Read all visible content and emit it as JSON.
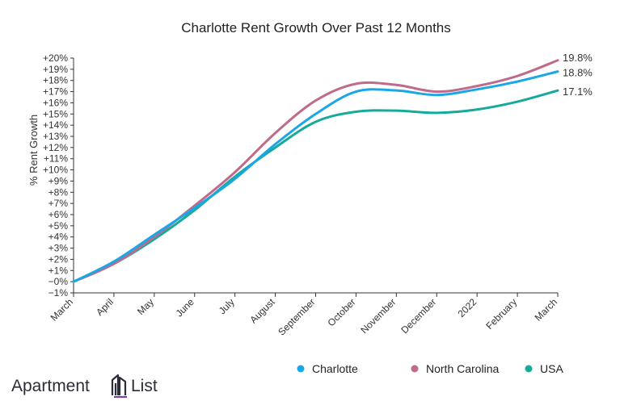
{
  "chart_data": {
    "type": "line",
    "title": "Charlotte Rent Growth Over Past 12 Months",
    "ylabel": "% Rent Growth",
    "xlabel": "",
    "categories": [
      "March",
      "April",
      "May",
      "June",
      "July",
      "August",
      "September",
      "October",
      "November",
      "December",
      "2022",
      "February",
      "March"
    ],
    "ylim": [
      -1,
      20
    ],
    "yticks": [
      -1,
      0,
      1,
      2,
      3,
      4,
      5,
      6,
      7,
      8,
      9,
      10,
      11,
      12,
      13,
      14,
      15,
      16,
      17,
      18,
      19,
      20
    ],
    "ytick_labels": [
      "−1%",
      "−0%",
      "+1%",
      "+2%",
      "+3%",
      "+4%",
      "+5%",
      "+6%",
      "+7%",
      "+8%",
      "+9%",
      "+10%",
      "+11%",
      "+12%",
      "+13%",
      "+14%",
      "+15%",
      "+16%",
      "+17%",
      "+18%",
      "+19%",
      "+20%"
    ],
    "series": [
      {
        "name": "Charlotte",
        "color": "#1aa7e6",
        "values": [
          0,
          1.8,
          4.2,
          6.6,
          9.2,
          12.3,
          15.0,
          17.0,
          17.1,
          16.7,
          17.2,
          17.9,
          18.8
        ],
        "end_label": "18.8%"
      },
      {
        "name": "North Carolina",
        "color": "#c06a8c",
        "values": [
          0,
          1.6,
          4.0,
          6.8,
          9.8,
          13.3,
          16.2,
          17.7,
          17.6,
          17.0,
          17.5,
          18.4,
          19.8
        ],
        "end_label": "19.8%"
      },
      {
        "name": "USA",
        "color": "#17aa9c",
        "values": [
          0,
          1.6,
          3.8,
          6.4,
          9.4,
          12.0,
          14.3,
          15.2,
          15.3,
          15.1,
          15.4,
          16.1,
          17.1
        ],
        "end_label": "17.1%"
      }
    ],
    "legend_position": "bottom-right",
    "grid": false
  },
  "legend": {
    "items": [
      "Charlotte",
      "North Carolina",
      "USA"
    ]
  },
  "brand": {
    "name_left": "Apartment",
    "name_right": "List",
    "color": "#2b2b3a",
    "accent": "#7a3fa0"
  }
}
